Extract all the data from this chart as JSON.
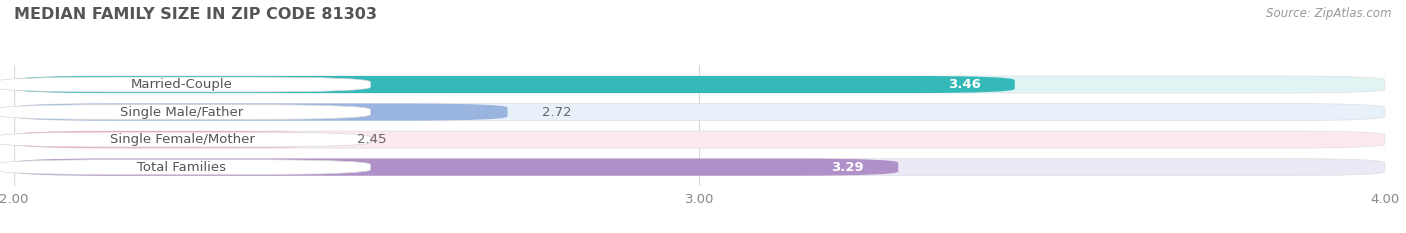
{
  "title": "MEDIAN FAMILY SIZE IN ZIP CODE 81303",
  "source": "Source: ZipAtlas.com",
  "categories": [
    "Married-Couple",
    "Single Male/Father",
    "Single Female/Mother",
    "Total Families"
  ],
  "values": [
    3.46,
    2.72,
    2.45,
    3.29
  ],
  "bar_colors": [
    "#35b8b8",
    "#9ab4e0",
    "#f0a0c0",
    "#b090c8"
  ],
  "bar_bg_colors": [
    "#e0f4f4",
    "#e8f0fa",
    "#fce8f0",
    "#ede8f5"
  ],
  "label_text_color": "#555555",
  "xlim": [
    2.0,
    4.0
  ],
  "xticks": [
    2.0,
    3.0,
    4.0
  ],
  "value_label_inside": [
    true,
    false,
    false,
    true
  ],
  "background_color": "#ffffff",
  "bar_height": 0.62,
  "title_fontsize": 11.5,
  "tick_fontsize": 9.5,
  "value_fontsize": 9.5,
  "label_fontsize": 9.5
}
